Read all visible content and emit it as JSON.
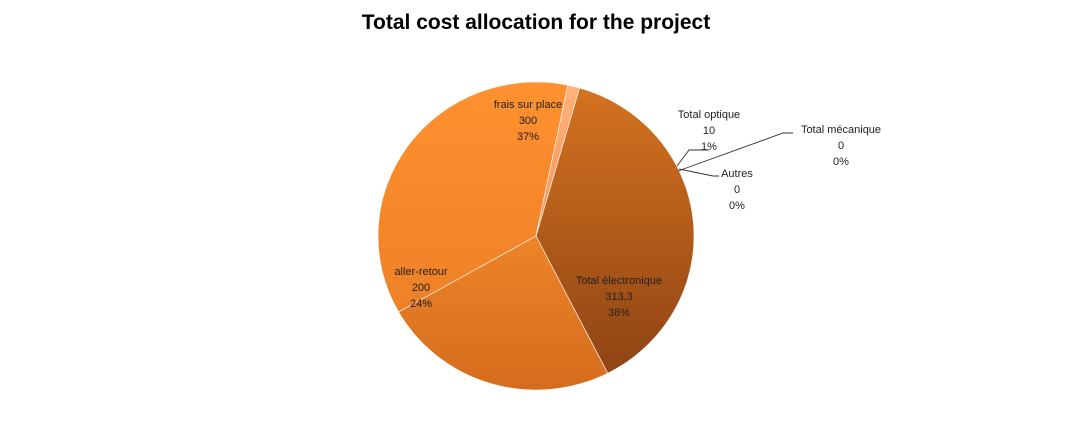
{
  "chart_data": {
    "type": "pie",
    "title": "Total cost allocation for the project",
    "categories": [
      "Total électronique",
      "aller-retour",
      "frais sur place",
      "Total optique",
      "Total mécanique",
      "Autres"
    ],
    "values": [
      313.3,
      200,
      300,
      10,
      0,
      0
    ],
    "value_labels": [
      "313,3",
      "200",
      "300",
      "10",
      "0",
      "0"
    ],
    "percent_labels": [
      "38%",
      "24%",
      "37%",
      "1%",
      "0%",
      "0%"
    ],
    "slice_colors": [
      "#b35d1a",
      "#e37a22",
      "#f5892a",
      "#f4a06a",
      "#f4a06a",
      "#f4a06a"
    ],
    "legend": "none",
    "data_labels": "category, value, percentage"
  }
}
